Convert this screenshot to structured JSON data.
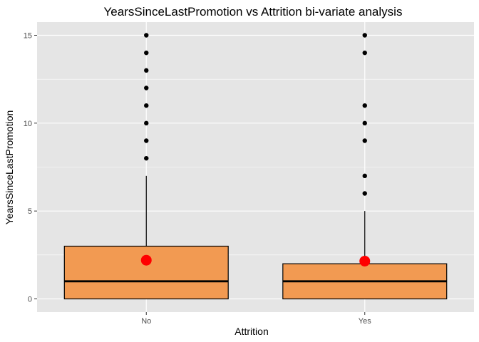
{
  "chart_data": {
    "type": "boxplot",
    "title": "YearsSinceLastPromotion vs Attrition bi-variate analysis",
    "xlabel": "Attrition",
    "ylabel": "YearsSinceLastPromotion",
    "categories": [
      "No",
      "Yes"
    ],
    "ylim": [
      -0.75,
      15.75
    ],
    "yticks": [
      0,
      5,
      10,
      15
    ],
    "grid": true,
    "boxes": [
      {
        "category": "No",
        "q1": 0,
        "median": 1,
        "q3": 3,
        "whisker_low": 0,
        "whisker_high": 7,
        "mean": 2.2,
        "outliers": [
          8,
          9,
          10,
          11,
          12,
          13,
          14,
          15
        ]
      },
      {
        "category": "Yes",
        "q1": 0,
        "median": 1,
        "q3": 2,
        "whisker_low": 0,
        "whisker_high": 5,
        "mean": 2.15,
        "outliers": [
          6,
          7,
          9,
          10,
          11,
          14,
          15
        ]
      }
    ],
    "colors": {
      "panel_background": "#e5e5e5",
      "grid": "#ffffff",
      "box_fill": "#f29a52",
      "box_outline": "#000000",
      "mean_point": "#ff0000",
      "outlier": "#000000"
    }
  }
}
